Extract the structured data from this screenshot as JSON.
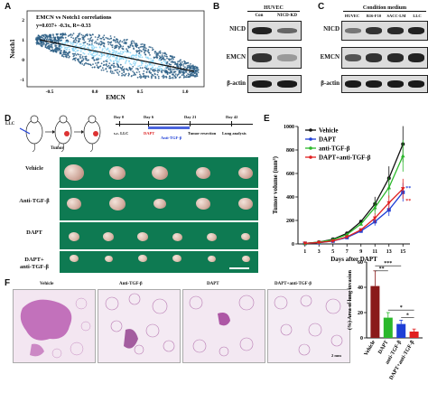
{
  "panel_labels": {
    "a": "A",
    "b": "B",
    "c": "C",
    "d": "D",
    "e": "E",
    "f": "F"
  },
  "panel_a": {
    "title": "EMCN vs Notch1 correlations",
    "ylabel": "Notch1",
    "xlabel": "EMCN",
    "annotation": "y=0.037+ -0.3x, R=-0.33",
    "xticks": [
      "-0.5",
      "0.0",
      "0.5",
      "1.0"
    ],
    "yticks": [
      "2",
      "1",
      "0",
      "-1"
    ],
    "scatter_color": "#2d5f86",
    "scatter_density_color": "#8ad3f5"
  },
  "panel_b": {
    "header": "HUVEC",
    "lanes": [
      "Con",
      "NICD-KD"
    ],
    "rows": [
      "NICD",
      "EMCN",
      "β-actin"
    ]
  },
  "panel_c": {
    "header": "Condition medium",
    "lanes": [
      "HUVEC",
      "B16-F10",
      "SACC-LM",
      "LLC"
    ],
    "rows": [
      "NICD",
      "EMCN",
      "β-actin"
    ]
  },
  "panel_d": {
    "llc_label": "LLC",
    "tumor_label": "Tumor",
    "timeline": {
      "day0": "Day 0",
      "sc": "s.c. LLC",
      "day6": "Day 6",
      "dapt": "DAPT",
      "anti": "Anti-TGF-β",
      "day21": "Day 21",
      "resection": "Tumor resection",
      "day42": "Day 42",
      "analysis": "Lung analysis"
    },
    "groups": [
      "Vehicle",
      "Anti-TGF-β",
      "DAPT",
      "DAPT+\nanti-TGF-β"
    ],
    "strip_color": "#0e7a52"
  },
  "chart_data": {
    "type": "line",
    "ylabel": "Tumor volume (mm³)",
    "xlabel": "Days after DAPT",
    "x": [
      1,
      3,
      5,
      7,
      9,
      11,
      13,
      15
    ],
    "ylim": [
      0,
      1000
    ],
    "yticks": [
      0,
      200,
      400,
      600,
      800,
      1000
    ],
    "series": [
      {
        "name": "Vehicle",
        "color": "#111111",
        "marker": "circle",
        "values": [
          5,
          15,
          40,
          90,
          190,
          340,
          560,
          850
        ]
      },
      {
        "name": "DAPT",
        "color": "#1f3fd6",
        "marker": "square",
        "values": [
          5,
          10,
          25,
          55,
          110,
          190,
          290,
          440
        ]
      },
      {
        "name": "anti-TGF-β",
        "color": "#2bb82b",
        "marker": "triangle",
        "values": [
          5,
          15,
          35,
          80,
          170,
          310,
          480,
          750
        ]
      },
      {
        "name": "DAPT+anti-TGF-β",
        "color": "#e02020",
        "marker": "triangle-down",
        "values": [
          5,
          12,
          25,
          60,
          120,
          220,
          350,
          470
        ]
      }
    ],
    "annotations": [
      "**",
      "**"
    ]
  },
  "panel_f": {
    "images": [
      "Vehicle",
      "Anti-TGF-β",
      "DAPT",
      "DAPT+anti-TGF-β"
    ],
    "scale_label": "2 mm",
    "bar_chart": {
      "type": "bar",
      "ylabel": "(%) Area of lung invasion",
      "categories": [
        "Vehicle",
        "DAPT",
        "anti-TGF-β",
        "DAPT+anti-TGF-β"
      ],
      "values": [
        41,
        16,
        11,
        5
      ],
      "errors": [
        12,
        4,
        3,
        2
      ],
      "colors": [
        "#8a1a1a",
        "#2bb82b",
        "#1f3fd6",
        "#e02020"
      ],
      "ylim": [
        0,
        60
      ],
      "yticks": [
        0,
        20,
        40,
        60
      ],
      "sig": [
        "**",
        "***",
        "*",
        "*"
      ]
    }
  }
}
